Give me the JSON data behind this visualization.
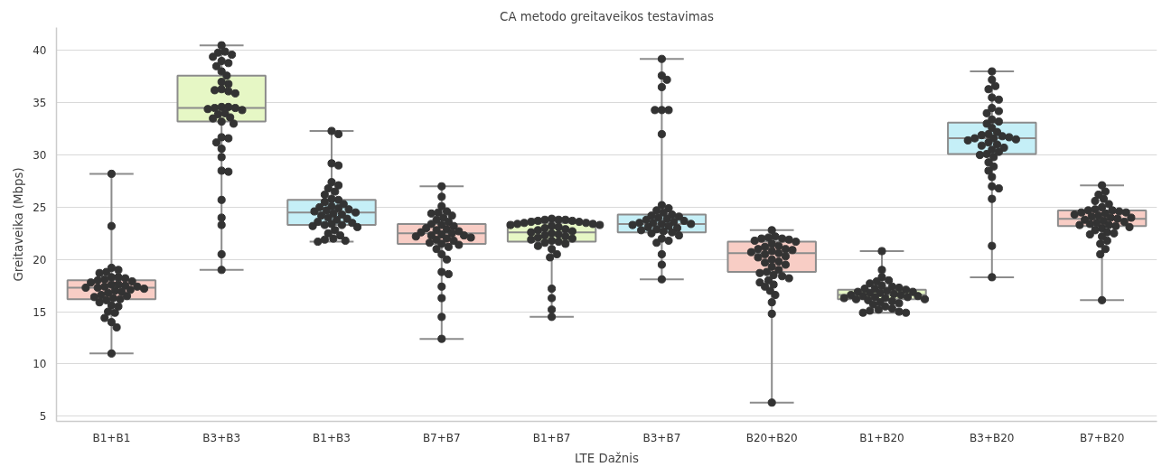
{
  "chart_data": {
    "type": "box",
    "title": "CA metodo greitaveikos testavimas",
    "xlabel": "LTE Dažnis",
    "ylabel": "Greitaveika (Mbps)",
    "categories": [
      "B1+B1",
      "B3+B3",
      "B1+B3",
      "B7+B7",
      "B1+B7",
      "B3+B7",
      "B20+B20",
      "B1+B20",
      "B3+B20",
      "B7+B20"
    ],
    "colors": [
      "#f8cdc5",
      "#e6f7c5",
      "#c5eff7",
      "#f8cdc5",
      "#e6f7c5",
      "#c5eff7",
      "#f8cdc5",
      "#e6f7c5",
      "#c5eff7",
      "#f8cdc5"
    ],
    "boxes": [
      {
        "low": 11.0,
        "q1": 16.2,
        "median": 17.3,
        "q3": 18.0,
        "high": 28.2
      },
      {
        "low": 19.0,
        "q1": 33.2,
        "median": 34.5,
        "q3": 37.6,
        "high": 40.5
      },
      {
        "low": 21.7,
        "q1": 23.3,
        "median": 24.5,
        "q3": 25.7,
        "high": 32.3
      },
      {
        "low": 12.4,
        "q1": 21.5,
        "median": 22.5,
        "q3": 23.4,
        "high": 27.0
      },
      {
        "low": 14.5,
        "q1": 21.7,
        "median": 22.6,
        "q3": 23.5,
        "high": 23.9
      },
      {
        "low": 18.1,
        "q1": 22.6,
        "median": 23.4,
        "q3": 24.3,
        "high": 39.2
      },
      {
        "low": 6.3,
        "q1": 18.8,
        "median": 20.6,
        "q3": 21.7,
        "high": 22.8
      },
      {
        "low": 14.9,
        "q1": 16.2,
        "median": 16.6,
        "q3": 17.1,
        "high": 20.8
      },
      {
        "low": 18.3,
        "q1": 30.1,
        "median": 31.6,
        "q3": 33.1,
        "high": 38.0
      },
      {
        "low": 16.1,
        "q1": 23.2,
        "median": 23.9,
        "q3": 24.7,
        "high": 27.1
      }
    ],
    "series": [
      {
        "type": "scatter",
        "color": "#333333",
        "x": [
          "B1+B1",
          "B1+B1",
          "B1+B1",
          "B1+B1",
          "B1+B1",
          "B1+B1",
          "B1+B1",
          "B1+B1",
          "B1+B1",
          "B1+B1",
          "B1+B1",
          "B1+B1",
          "B1+B1",
          "B1+B1",
          "B1+B1",
          "B1+B1",
          "B1+B1",
          "B1+B1",
          "B1+B1",
          "B1+B1",
          "B1+B1",
          "B1+B1",
          "B1+B1",
          "B1+B1",
          "B1+B1",
          "B1+B1",
          "B1+B1",
          "B1+B1",
          "B1+B1",
          "B1+B1",
          "B1+B1",
          "B1+B1",
          "B1+B1",
          "B1+B1",
          "B1+B1",
          "B1+B1",
          "B1+B1",
          "B1+B1",
          "B1+B1",
          "B1+B1"
        ],
        "values": [
          28.2,
          23.2,
          19.2,
          19.0,
          18.8,
          18.7,
          18.3,
          18.3,
          18.2,
          18.1,
          18.0,
          17.9,
          17.8,
          17.6,
          17.6,
          17.5,
          17.4,
          17.4,
          17.3,
          17.3,
          17.2,
          17.1,
          17.0,
          16.9,
          16.8,
          16.6,
          16.5,
          16.4,
          16.3,
          16.2,
          16.1,
          15.9,
          15.6,
          15.5,
          15.0,
          14.9,
          14.4,
          14.0,
          13.5,
          11.0
        ]
      },
      {
        "type": "scatter",
        "color": "#333333",
        "x": [
          "B3+B3",
          "B3+B3",
          "B3+B3",
          "B3+B3",
          "B3+B3",
          "B3+B3",
          "B3+B3",
          "B3+B3",
          "B3+B3",
          "B3+B3",
          "B3+B3",
          "B3+B3",
          "B3+B3",
          "B3+B3",
          "B3+B3",
          "B3+B3",
          "B3+B3",
          "B3+B3",
          "B3+B3",
          "B3+B3",
          "B3+B3",
          "B3+B3",
          "B3+B3",
          "B3+B3",
          "B3+B3",
          "B3+B3",
          "B3+B3",
          "B3+B3",
          "B3+B3",
          "B3+B3",
          "B3+B3",
          "B3+B3",
          "B3+B3",
          "B3+B3",
          "B3+B3",
          "B3+B3",
          "B3+B3",
          "B3+B3",
          "B3+B3",
          "B3+B3"
        ],
        "values": [
          40.5,
          39.9,
          39.8,
          39.6,
          39.4,
          39.0,
          38.8,
          38.5,
          38.0,
          37.6,
          37.0,
          36.8,
          36.3,
          36.2,
          36.1,
          35.9,
          34.6,
          34.6,
          34.5,
          34.5,
          34.4,
          34.3,
          34.0,
          33.9,
          33.6,
          33.5,
          33.2,
          33.0,
          31.7,
          31.6,
          31.2,
          30.6,
          29.8,
          28.5,
          28.4,
          25.7,
          24.0,
          23.3,
          20.5,
          19.0
        ]
      },
      {
        "type": "scatter",
        "color": "#333333",
        "x": [
          "B1+B3",
          "B1+B3",
          "B1+B3",
          "B1+B3",
          "B1+B3",
          "B1+B3",
          "B1+B3",
          "B1+B3",
          "B1+B3",
          "B1+B3",
          "B1+B3",
          "B1+B3",
          "B1+B3",
          "B1+B3",
          "B1+B3",
          "B1+B3",
          "B1+B3",
          "B1+B3",
          "B1+B3",
          "B1+B3",
          "B1+B3",
          "B1+B3",
          "B1+B3",
          "B1+B3",
          "B1+B3",
          "B1+B3",
          "B1+B3",
          "B1+B3",
          "B1+B3",
          "B1+B3",
          "B1+B3",
          "B1+B3",
          "B1+B3",
          "B1+B3",
          "B1+B3",
          "B1+B3",
          "B1+B3",
          "B1+B3",
          "B1+B3",
          "B1+B3"
        ],
        "values": [
          32.3,
          32.0,
          29.2,
          29.0,
          27.4,
          27.1,
          26.8,
          26.5,
          26.2,
          25.8,
          25.7,
          25.5,
          25.3,
          25.1,
          25.0,
          24.9,
          24.8,
          24.7,
          24.6,
          24.5,
          24.4,
          24.3,
          24.2,
          24.0,
          23.9,
          23.8,
          23.6,
          23.5,
          23.4,
          23.3,
          23.3,
          23.2,
          23.1,
          22.8,
          22.5,
          22.3,
          22.0,
          21.9,
          21.8,
          21.7
        ]
      },
      {
        "type": "scatter",
        "color": "#333333",
        "x": [
          "B7+B7",
          "B7+B7",
          "B7+B7",
          "B7+B7",
          "B7+B7",
          "B7+B7",
          "B7+B7",
          "B7+B7",
          "B7+B7",
          "B7+B7",
          "B7+B7",
          "B7+B7",
          "B7+B7",
          "B7+B7",
          "B7+B7",
          "B7+B7",
          "B7+B7",
          "B7+B7",
          "B7+B7",
          "B7+B7",
          "B7+B7",
          "B7+B7",
          "B7+B7",
          "B7+B7",
          "B7+B7",
          "B7+B7",
          "B7+B7",
          "B7+B7",
          "B7+B7",
          "B7+B7",
          "B7+B7",
          "B7+B7",
          "B7+B7",
          "B7+B7",
          "B7+B7",
          "B7+B7",
          "B7+B7",
          "B7+B7",
          "B7+B7",
          "B7+B7"
        ],
        "values": [
          27.0,
          26.0,
          25.1,
          24.6,
          24.5,
          24.4,
          24.2,
          24.0,
          23.8,
          23.6,
          23.4,
          23.3,
          23.2,
          23.0,
          22.9,
          22.8,
          22.7,
          22.6,
          22.5,
          22.4,
          22.3,
          22.3,
          22.2,
          22.1,
          22.0,
          21.9,
          21.8,
          21.6,
          21.5,
          21.4,
          21.2,
          21.0,
          20.5,
          20.0,
          18.8,
          18.6,
          17.4,
          16.3,
          14.5,
          12.4
        ]
      },
      {
        "type": "scatter",
        "color": "#333333",
        "x": [
          "B1+B7",
          "B1+B7",
          "B1+B7",
          "B1+B7",
          "B1+B7",
          "B1+B7",
          "B1+B7",
          "B1+B7",
          "B1+B7",
          "B1+B7",
          "B1+B7",
          "B1+B7",
          "B1+B7",
          "B1+B7",
          "B1+B7",
          "B1+B7",
          "B1+B7",
          "B1+B7",
          "B1+B7",
          "B1+B7",
          "B1+B7",
          "B1+B7",
          "B1+B7",
          "B1+B7",
          "B1+B7",
          "B1+B7",
          "B1+B7",
          "B1+B7",
          "B1+B7",
          "B1+B7",
          "B1+B7",
          "B1+B7",
          "B1+B7",
          "B1+B7",
          "B1+B7",
          "B1+B7",
          "B1+B7",
          "B1+B7",
          "B1+B7",
          "B1+B7"
        ],
        "values": [
          23.9,
          23.8,
          23.8,
          23.8,
          23.7,
          23.7,
          23.6,
          23.6,
          23.5,
          23.5,
          23.4,
          23.4,
          23.3,
          23.3,
          23.2,
          23.1,
          23.0,
          22.9,
          22.8,
          22.7,
          22.6,
          22.5,
          22.4,
          22.3,
          22.2,
          22.1,
          22.0,
          21.9,
          21.8,
          21.7,
          21.6,
          21.5,
          21.3,
          21.0,
          20.5,
          20.2,
          17.2,
          16.3,
          15.2,
          14.5
        ]
      },
      {
        "type": "scatter",
        "color": "#333333",
        "x": [
          "B3+B7",
          "B3+B7",
          "B3+B7",
          "B3+B7",
          "B3+B7",
          "B3+B7",
          "B3+B7",
          "B3+B7",
          "B3+B7",
          "B3+B7",
          "B3+B7",
          "B3+B7",
          "B3+B7",
          "B3+B7",
          "B3+B7",
          "B3+B7",
          "B3+B7",
          "B3+B7",
          "B3+B7",
          "B3+B7",
          "B3+B7",
          "B3+B7",
          "B3+B7",
          "B3+B7",
          "B3+B7",
          "B3+B7",
          "B3+B7",
          "B3+B7",
          "B3+B7",
          "B3+B7",
          "B3+B7",
          "B3+B7",
          "B3+B7",
          "B3+B7",
          "B3+B7",
          "B3+B7",
          "B3+B7",
          "B3+B7",
          "B3+B7",
          "B3+B7"
        ],
        "values": [
          39.2,
          37.6,
          37.2,
          36.5,
          34.3,
          34.3,
          34.3,
          32.0,
          25.2,
          24.9,
          24.7,
          24.5,
          24.3,
          24.2,
          24.1,
          24.0,
          23.9,
          23.8,
          23.7,
          23.6,
          23.5,
          23.5,
          23.4,
          23.4,
          23.3,
          23.2,
          23.1,
          23.0,
          22.9,
          22.8,
          22.7,
          22.6,
          22.5,
          22.3,
          22.0,
          21.8,
          21.6,
          20.5,
          19.5,
          18.1
        ]
      },
      {
        "type": "scatter",
        "color": "#333333",
        "x": [
          "B20+B20",
          "B20+B20",
          "B20+B20",
          "B20+B20",
          "B20+B20",
          "B20+B20",
          "B20+B20",
          "B20+B20",
          "B20+B20",
          "B20+B20",
          "B20+B20",
          "B20+B20",
          "B20+B20",
          "B20+B20",
          "B20+B20",
          "B20+B20",
          "B20+B20",
          "B20+B20",
          "B20+B20",
          "B20+B20",
          "B20+B20",
          "B20+B20",
          "B20+B20",
          "B20+B20",
          "B20+B20",
          "B20+B20",
          "B20+B20",
          "B20+B20",
          "B20+B20",
          "B20+B20",
          "B20+B20",
          "B20+B20",
          "B20+B20",
          "B20+B20",
          "B20+B20",
          "B20+B20",
          "B20+B20",
          "B20+B20",
          "B20+B20",
          "B20+B20"
        ],
        "values": [
          22.8,
          22.2,
          22.1,
          22.0,
          22.0,
          21.9,
          21.8,
          21.7,
          21.5,
          21.3,
          21.2,
          21.0,
          21.0,
          20.9,
          20.8,
          20.7,
          20.6,
          20.5,
          20.3,
          20.2,
          20.0,
          19.8,
          19.7,
          19.5,
          19.3,
          19.0,
          18.8,
          18.7,
          18.5,
          18.4,
          18.2,
          18.0,
          17.6,
          17.4,
          17.0,
          16.6,
          15.9,
          14.8,
          17.8,
          6.3
        ]
      },
      {
        "type": "scatter",
        "color": "#333333",
        "x": [
          "B1+B20",
          "B1+B20",
          "B1+B20",
          "B1+B20",
          "B1+B20",
          "B1+B20",
          "B1+B20",
          "B1+B20",
          "B1+B20",
          "B1+B20",
          "B1+B20",
          "B1+B20",
          "B1+B20",
          "B1+B20",
          "B1+B20",
          "B1+B20",
          "B1+B20",
          "B1+B20",
          "B1+B20",
          "B1+B20",
          "B1+B20",
          "B1+B20",
          "B1+B20",
          "B1+B20",
          "B1+B20",
          "B1+B20",
          "B1+B20",
          "B1+B20",
          "B1+B20",
          "B1+B20",
          "B1+B20",
          "B1+B20",
          "B1+B20",
          "B1+B20",
          "B1+B20",
          "B1+B20",
          "B1+B20",
          "B1+B20",
          "B1+B20",
          "B1+B20"
        ],
        "values": [
          20.8,
          19.0,
          18.3,
          18.0,
          17.9,
          17.7,
          17.5,
          17.4,
          17.3,
          17.2,
          17.2,
          17.1,
          17.0,
          16.9,
          16.9,
          16.8,
          16.8,
          16.7,
          16.6,
          16.6,
          16.5,
          16.5,
          16.4,
          16.4,
          16.3,
          16.3,
          16.2,
          16.2,
          16.1,
          16.0,
          15.9,
          15.8,
          15.7,
          15.5,
          15.3,
          15.2,
          15.1,
          15.0,
          14.9,
          14.9
        ]
      },
      {
        "type": "scatter",
        "color": "#333333",
        "x": [
          "B3+B20",
          "B3+B20",
          "B3+B20",
          "B3+B20",
          "B3+B20",
          "B3+B20",
          "B3+B20",
          "B3+B20",
          "B3+B20",
          "B3+B20",
          "B3+B20",
          "B3+B20",
          "B3+B20",
          "B3+B20",
          "B3+B20",
          "B3+B20",
          "B3+B20",
          "B3+B20",
          "B3+B20",
          "B3+B20",
          "B3+B20",
          "B3+B20",
          "B3+B20",
          "B3+B20",
          "B3+B20",
          "B3+B20",
          "B3+B20",
          "B3+B20",
          "B3+B20",
          "B3+B20",
          "B3+B20",
          "B3+B20",
          "B3+B20",
          "B3+B20",
          "B3+B20",
          "B3+B20",
          "B3+B20",
          "B3+B20",
          "B3+B20",
          "B3+B20"
        ],
        "values": [
          38.0,
          37.2,
          36.6,
          36.3,
          35.5,
          35.3,
          34.5,
          34.2,
          34.0,
          33.4,
          33.2,
          33.0,
          32.6,
          32.2,
          32.0,
          31.9,
          31.8,
          31.7,
          31.6,
          31.6,
          31.5,
          31.4,
          31.2,
          31.0,
          30.9,
          30.7,
          30.5,
          30.3,
          30.1,
          30.0,
          29.8,
          29.3,
          28.9,
          28.5,
          27.9,
          27.0,
          26.8,
          25.8,
          21.3,
          18.3
        ]
      },
      {
        "type": "scatter",
        "color": "#333333",
        "x": [
          "B7+B20",
          "B7+B20",
          "B7+B20",
          "B7+B20",
          "B7+B20",
          "B7+B20",
          "B7+B20",
          "B7+B20",
          "B7+B20",
          "B7+B20",
          "B7+B20",
          "B7+B20",
          "B7+B20",
          "B7+B20",
          "B7+B20",
          "B7+B20",
          "B7+B20",
          "B7+B20",
          "B7+B20",
          "B7+B20",
          "B7+B20",
          "B7+B20",
          "B7+B20",
          "B7+B20",
          "B7+B20",
          "B7+B20",
          "B7+B20",
          "B7+B20",
          "B7+B20",
          "B7+B20",
          "B7+B20",
          "B7+B20",
          "B7+B20",
          "B7+B20",
          "B7+B20",
          "B7+B20",
          "B7+B20",
          "B7+B20",
          "B7+B20",
          "B7+B20"
        ],
        "values": [
          27.1,
          26.5,
          26.2,
          25.8,
          25.6,
          25.3,
          25.0,
          24.8,
          24.7,
          24.7,
          24.6,
          24.5,
          24.5,
          24.4,
          24.3,
          24.2,
          24.1,
          24.0,
          24.0,
          23.9,
          23.8,
          23.7,
          23.6,
          23.5,
          23.4,
          23.3,
          23.3,
          23.2,
          23.1,
          23.0,
          22.8,
          22.6,
          22.5,
          22.4,
          22.2,
          21.8,
          21.5,
          21.0,
          20.5,
          16.1
        ]
      }
    ],
    "ylim": [
      4.5,
      42.2
    ],
    "yticks": [
      5,
      10,
      15,
      20,
      25,
      30,
      35,
      40
    ],
    "grid": "y",
    "marker": "circle"
  }
}
